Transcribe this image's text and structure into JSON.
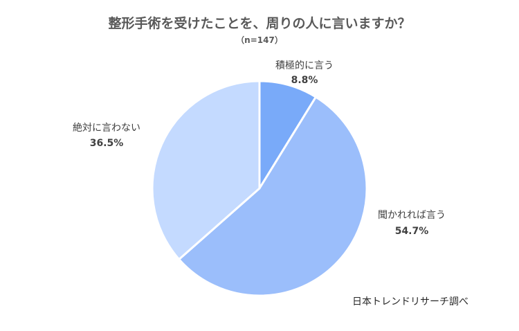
{
  "chart_data": {
    "type": "pie",
    "title": "整形手術を受けたことを、周りの人に言いますか？",
    "subtitle": "（n=147）",
    "slices": [
      {
        "label": "積極的に言う",
        "value": 8.8,
        "value_label": "8.8%",
        "color": "#79aaf9"
      },
      {
        "label": "聞かれれば言う",
        "value": 54.7,
        "value_label": "54.7%",
        "color": "#9bbefb"
      },
      {
        "label": "絶対に言わない",
        "value": 36.5,
        "value_label": "36.5%",
        "color": "#c4daff"
      }
    ]
  },
  "source": "日本トレンドリサーチ調べ"
}
